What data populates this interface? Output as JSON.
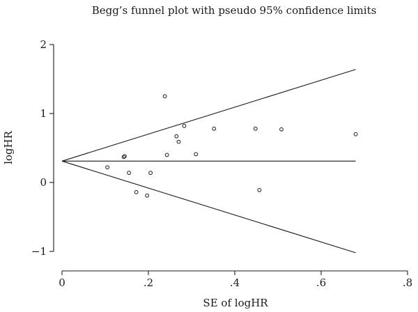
{
  "chart_data": {
    "type": "scatter",
    "title": "Begg’s funnel plot with pseudo 95% confidence limits",
    "xlabel": "SE of logHR",
    "ylabel": "logHR",
    "xlim": [
      0,
      0.8
    ],
    "ylim": [
      -1,
      2
    ],
    "x_ticks": [
      0,
      0.2,
      0.4,
      0.6,
      0.8
    ],
    "x_tick_labels": [
      "0",
      ".2",
      ".4",
      ".6",
      ".8"
    ],
    "y_ticks": [
      -1,
      0,
      1,
      2
    ],
    "y_tick_labels": [
      "−1",
      "0",
      "1",
      "2"
    ],
    "grid": false,
    "legend": "none",
    "pooled_estimate": 0.31,
    "confidence_limits": {
      "se_max": 0.68,
      "upper_end": 1.64,
      "lower_end": -1.02
    },
    "points": [
      {
        "x": 0.105,
        "y": 0.22
      },
      {
        "x": 0.143,
        "y": 0.37
      },
      {
        "x": 0.145,
        "y": 0.38
      },
      {
        "x": 0.155,
        "y": 0.14
      },
      {
        "x": 0.172,
        "y": -0.14
      },
      {
        "x": 0.197,
        "y": -0.19
      },
      {
        "x": 0.205,
        "y": 0.14
      },
      {
        "x": 0.238,
        "y": 1.25
      },
      {
        "x": 0.243,
        "y": 0.4
      },
      {
        "x": 0.265,
        "y": 0.67
      },
      {
        "x": 0.27,
        "y": 0.59
      },
      {
        "x": 0.283,
        "y": 0.82
      },
      {
        "x": 0.31,
        "y": 0.41
      },
      {
        "x": 0.352,
        "y": 0.78
      },
      {
        "x": 0.448,
        "y": 0.78
      },
      {
        "x": 0.457,
        "y": -0.11
      },
      {
        "x": 0.508,
        "y": 0.77
      },
      {
        "x": 0.68,
        "y": 0.7
      }
    ]
  }
}
